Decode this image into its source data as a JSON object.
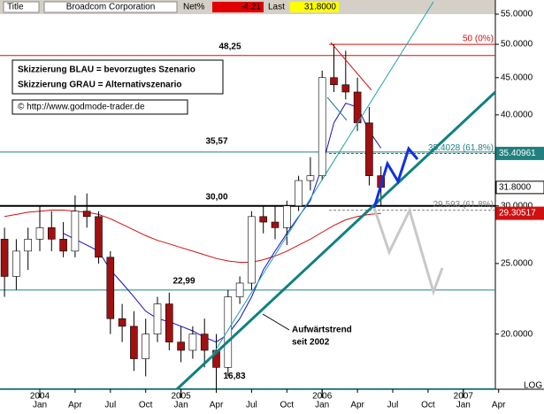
{
  "header": {
    "title_label": "Title",
    "title": "Broadcom Corporation",
    "net_label": "Net%",
    "net": "-4.21",
    "last_label": "Last",
    "last": "31.8000"
  },
  "chart_data": {
    "type": "candlestick",
    "scale": "log",
    "x": [
      "2003-10",
      "2003-11",
      "2003-12",
      "2004-01",
      "2004-02",
      "2004-03",
      "2004-04",
      "2004-05",
      "2004-06",
      "2004-07",
      "2004-08",
      "2004-09",
      "2004-10",
      "2004-11",
      "2004-12",
      "2005-01",
      "2005-02",
      "2005-03",
      "2005-04",
      "2005-05",
      "2005-06",
      "2005-07",
      "2005-08",
      "2005-09",
      "2005-10",
      "2005-11",
      "2005-12",
      "2006-01",
      "2006-02",
      "2006-03",
      "2006-04",
      "2006-05",
      "2006-06"
    ],
    "open": [
      27,
      24,
      26,
      27,
      28,
      27,
      26,
      29.5,
      29,
      25.5,
      21,
      20.5,
      18.5,
      20,
      22,
      19.5,
      19,
      20,
      19,
      18,
      22.5,
      23.5,
      29,
      28.5,
      28,
      30,
      32.5,
      33,
      45,
      44,
      43,
      39,
      33
    ],
    "high": [
      28,
      27,
      28,
      30,
      29.5,
      28.5,
      31,
      31.2,
      29.5,
      26,
      22,
      21.5,
      21,
      22.5,
      22.8,
      20.5,
      20.5,
      21,
      20,
      23,
      24,
      29.5,
      30,
      30,
      30.5,
      33,
      35,
      46,
      50,
      49,
      45,
      41,
      34
    ],
    "low": [
      22.5,
      23,
      24.5,
      26,
      26,
      25.5,
      25.5,
      28,
      25,
      20,
      19.5,
      17.8,
      17.5,
      19.5,
      19,
      18.3,
      18.5,
      18,
      16.8,
      17.5,
      22,
      23,
      27.5,
      27,
      26.5,
      29.5,
      31.5,
      32.5,
      43,
      42,
      38,
      32,
      30
    ],
    "close": [
      24,
      26,
      27,
      28,
      27,
      26,
      29.5,
      29,
      25.5,
      21,
      20.5,
      18.5,
      20,
      22,
      19.5,
      19,
      20,
      19,
      18,
      22.5,
      23.5,
      29,
      28.5,
      28,
      30,
      32.5,
      33,
      45,
      44,
      43,
      39,
      33,
      31.8
    ],
    "up_color": "#ffffff",
    "down_color": "#a01010",
    "series": [
      {
        "color": "#d01010",
        "values": [
          29,
          29.2,
          29.4,
          29.5,
          29.6,
          29.6,
          29.5,
          29.4,
          29.2,
          28.8,
          28.3,
          27.8,
          27.3,
          26.9,
          26.6,
          26.3,
          26,
          25.7,
          25.4,
          25.2,
          25.1,
          25.1,
          25.3,
          25.6,
          26,
          26.5,
          27,
          27.6,
          28.2,
          28.7,
          29,
          29.2,
          29.3
        ]
      },
      {
        "color": "#1010c0",
        "values": [
          null,
          null,
          null,
          null,
          null,
          27.5,
          27,
          26.5,
          26,
          24.5,
          23.5,
          22.5,
          21.5,
          21,
          20.8,
          20.5,
          20.2,
          19.8,
          19.5,
          20,
          21,
          22.5,
          24.5,
          26,
          27.5,
          29,
          30.5,
          34,
          39,
          41.5,
          41,
          38,
          36
        ]
      }
    ],
    "ylim": [
      16.8,
      55
    ],
    "yticks": [
      {
        "value": 20,
        "label": "20.0000"
      },
      {
        "value": 25,
        "label": "25.0000"
      },
      {
        "value": 30,
        "label": "30.0000"
      },
      {
        "value": 40,
        "label": "40.0000"
      },
      {
        "value": 45,
        "label": "45.0000"
      },
      {
        "value": 50,
        "label": "50.0000"
      },
      {
        "value": 55,
        "label": "55.0000"
      }
    ],
    "xticks": [
      {
        "value": "2004-01",
        "label": "Jan"
      },
      {
        "value": "2004-04",
        "label": "Apr"
      },
      {
        "value": "2004-07",
        "label": "Jul"
      },
      {
        "value": "2004-10",
        "label": "Oct"
      },
      {
        "value": "2005-01",
        "label": "Jan"
      },
      {
        "value": "2005-04",
        "label": "Apr"
      },
      {
        "value": "2005-07",
        "label": "Jul"
      },
      {
        "value": "2005-10",
        "label": "Oct"
      },
      {
        "value": "2006-01",
        "label": "Jan"
      },
      {
        "value": "2006-04",
        "label": "Apr"
      },
      {
        "value": "2006-07",
        "label": "Jul"
      },
      {
        "value": "2006-10",
        "label": "Oct"
      },
      {
        "value": "2007-01",
        "label": "Jan"
      },
      {
        "value": "2007-04",
        "label": "Apr"
      }
    ],
    "year_labels": [
      {
        "value": "2004-01",
        "label": "2004"
      },
      {
        "value": "2005-01",
        "label": "2005"
      },
      {
        "value": "2006-01",
        "label": "2006"
      },
      {
        "value": "2007-01",
        "label": "2007"
      }
    ],
    "levels": [
      {
        "value": 48.25,
        "label": "48,25",
        "color": "#d01010"
      },
      {
        "value": 35.57,
        "label": "35,57",
        "color": "#208080"
      },
      {
        "value": 30,
        "label": "30,00",
        "color": "#000000"
      },
      {
        "value": 22.99,
        "label": "22,99",
        "color": "#208080"
      },
      {
        "value": 16.83,
        "label": "16,83",
        "color": "#208080"
      }
    ],
    "fib": [
      {
        "value": 50,
        "label": "50 (0%)",
        "color": "#d01010"
      },
      {
        "value": 35.4028,
        "label": "35.4028 (61.8%)",
        "color": "#208080"
      },
      {
        "value": 29.593,
        "label": "29.593 (61.8%)",
        "color": "#808080"
      }
    ],
    "price_tags": [
      {
        "value": 35.40961,
        "label": "35.40961",
        "color": "#208080"
      },
      {
        "value": 31.8,
        "label": "31.8000",
        "color": "#000000"
      },
      {
        "value": 29.30517,
        "label": "29.30517",
        "color": "#d01010"
      }
    ],
    "legend_lines": [
      "Skizzierung BLAU = bevorzugtes Szenario",
      "Skizzierung GRAU = Alternativszenario"
    ],
    "copyright": "© http://www.godmode-trader.de",
    "annotation": [
      "Aufwärtstrend",
      "seit 2002"
    ],
    "scale_label": "LOG"
  }
}
